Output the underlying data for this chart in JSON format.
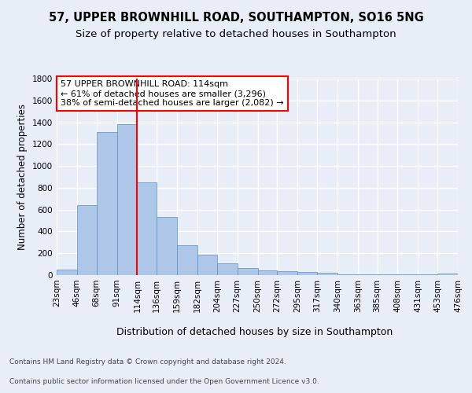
{
  "title": "57, UPPER BROWNHILL ROAD, SOUTHAMPTON, SO16 5NG",
  "subtitle": "Size of property relative to detached houses in Southampton",
  "xlabel": "Distribution of detached houses by size in Southampton",
  "ylabel": "Number of detached properties",
  "footer_line1": "Contains HM Land Registry data © Crown copyright and database right 2024.",
  "footer_line2": "Contains public sector information licensed under the Open Government Licence v3.0.",
  "annotation_line1": "57 UPPER BROWNHILL ROAD: 114sqm",
  "annotation_line2": "← 61% of detached houses are smaller (3,296)",
  "annotation_line3": "38% of semi-detached houses are larger (2,082) →",
  "bar_color": "#aec6e8",
  "bar_edge_color": "#5a8fc0",
  "vline_x": 114,
  "vline_color": "red",
  "bin_edges": [
    23,
    46,
    68,
    91,
    114,
    136,
    159,
    182,
    204,
    227,
    250,
    272,
    295,
    317,
    340,
    363,
    385,
    408,
    431,
    453,
    476
  ],
  "bar_heights": [
    50,
    640,
    1310,
    1380,
    850,
    530,
    275,
    185,
    105,
    65,
    40,
    35,
    30,
    20,
    10,
    5,
    5,
    5,
    5,
    15
  ],
  "ylim": [
    0,
    1800
  ],
  "yticks": [
    0,
    200,
    400,
    600,
    800,
    1000,
    1200,
    1400,
    1600,
    1800
  ],
  "background_color": "#e8eef8",
  "plot_background_color": "#e8eef8",
  "grid_color": "#ffffff",
  "title_fontsize": 10.5,
  "subtitle_fontsize": 9.5,
  "xlabel_fontsize": 9,
  "ylabel_fontsize": 8.5,
  "tick_fontsize": 7.5,
  "annotation_fontsize": 8,
  "footer_fontsize": 6.5
}
